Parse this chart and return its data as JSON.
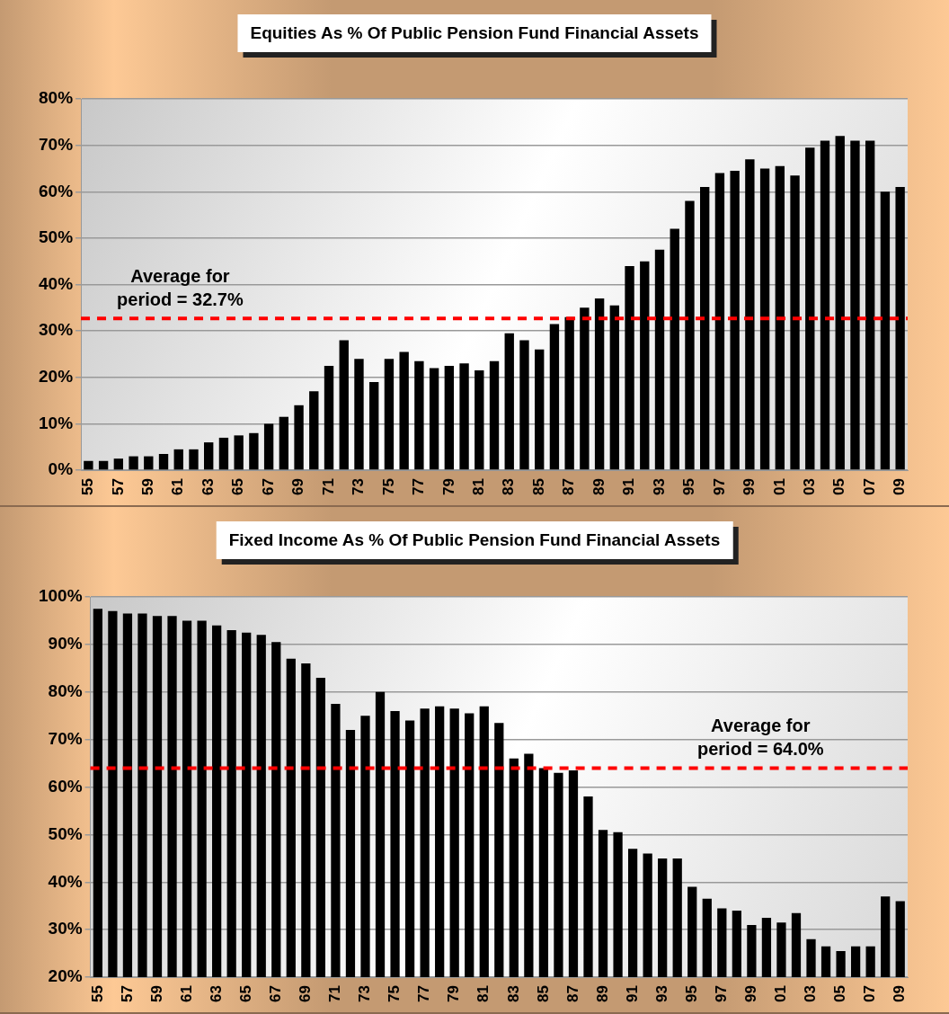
{
  "chart_data": [
    {
      "type": "bar",
      "title": "Equities As % Of Public Pension Fund Financial Assets",
      "categories": [
        "55",
        null,
        "57",
        null,
        "59",
        null,
        "61",
        null,
        "63",
        null,
        "65",
        null,
        "67",
        null,
        "69",
        null,
        "71",
        null,
        "73",
        null,
        "75",
        null,
        "77",
        null,
        "79",
        null,
        "81",
        null,
        "83",
        null,
        "85",
        null,
        "87",
        null,
        "89",
        null,
        "91",
        null,
        "93",
        null,
        "95",
        null,
        "97",
        null,
        "99",
        null,
        "01",
        null,
        "03",
        null,
        "05",
        null,
        "07",
        null,
        "09"
      ],
      "values": [
        2,
        2,
        2.5,
        3,
        3,
        3.5,
        4.5,
        4.5,
        6,
        7,
        7.5,
        8,
        10,
        11.5,
        14,
        17,
        22.5,
        28,
        24,
        19,
        24,
        25.5,
        23.5,
        22,
        22.5,
        23,
        21.5,
        23.5,
        29.5,
        28,
        26,
        31.5,
        33,
        35,
        37,
        35.5,
        44,
        45,
        47.5,
        52,
        58,
        61,
        64,
        64.5,
        67,
        65,
        65.5,
        63.5,
        69.5,
        71,
        72,
        71,
        71,
        60,
        61
      ],
      "color": "#000000",
      "ylim": [
        0,
        80
      ],
      "yticks": [
        {
          "value": 0,
          "label": "0%"
        },
        {
          "value": 10,
          "label": "10%"
        },
        {
          "value": 20,
          "label": "20%"
        },
        {
          "value": 30,
          "label": "30%"
        },
        {
          "value": 40,
          "label": "40%"
        },
        {
          "value": 50,
          "label": "50%"
        },
        {
          "value": 60,
          "label": "60%"
        },
        {
          "value": 70,
          "label": "70%"
        },
        {
          "value": 80,
          "label": "80%"
        }
      ],
      "ref_lines": [
        {
          "axis": "y",
          "value": 32.7,
          "label": "Average for\nperiod = 32.7%",
          "color": "#ff0000",
          "line_style": "dashed"
        }
      ],
      "grid": "y",
      "legend": false
    },
    {
      "type": "bar",
      "title": "Fixed Income As % Of Public Pension Fund Financial Assets",
      "categories": [
        "55",
        null,
        "57",
        null,
        "59",
        null,
        "61",
        null,
        "63",
        null,
        "65",
        null,
        "67",
        null,
        "69",
        null,
        "71",
        null,
        "73",
        null,
        "75",
        null,
        "77",
        null,
        "79",
        null,
        "81",
        null,
        "83",
        null,
        "85",
        null,
        "87",
        null,
        "89",
        null,
        "91",
        null,
        "93",
        null,
        "95",
        null,
        "97",
        null,
        "99",
        null,
        "01",
        null,
        "03",
        null,
        "05",
        null,
        "07",
        null,
        "09"
      ],
      "values": [
        97.5,
        97,
        96.5,
        96.5,
        96,
        96,
        95,
        95,
        94,
        93,
        92.5,
        92,
        90.5,
        87,
        86,
        83,
        77.5,
        72,
        75,
        80,
        76,
        74,
        76.5,
        77,
        76.5,
        75.5,
        77,
        73.5,
        66,
        67,
        64,
        63,
        63.5,
        58,
        51,
        50.5,
        47,
        46,
        45,
        45,
        39,
        36.5,
        34.5,
        34,
        31,
        32.5,
        31.5,
        33.5,
        28,
        26.5,
        25.5,
        26.5,
        26.5,
        37,
        36
      ],
      "color": "#000000",
      "ylim": [
        20,
        100
      ],
      "yticks": [
        {
          "value": 20,
          "label": "20%"
        },
        {
          "value": 30,
          "label": "30%"
        },
        {
          "value": 40,
          "label": "40%"
        },
        {
          "value": 50,
          "label": "50%"
        },
        {
          "value": 60,
          "label": "60%"
        },
        {
          "value": 70,
          "label": "70%"
        },
        {
          "value": 80,
          "label": "80%"
        },
        {
          "value": 90,
          "label": "90%"
        },
        {
          "value": 100,
          "label": "100%"
        }
      ],
      "ref_lines": [
        {
          "axis": "y",
          "value": 64.0,
          "label": "Average for\nperiod = 64.0%",
          "color": "#ff0000",
          "line_style": "dashed"
        }
      ],
      "grid": "y",
      "legend": false
    }
  ]
}
